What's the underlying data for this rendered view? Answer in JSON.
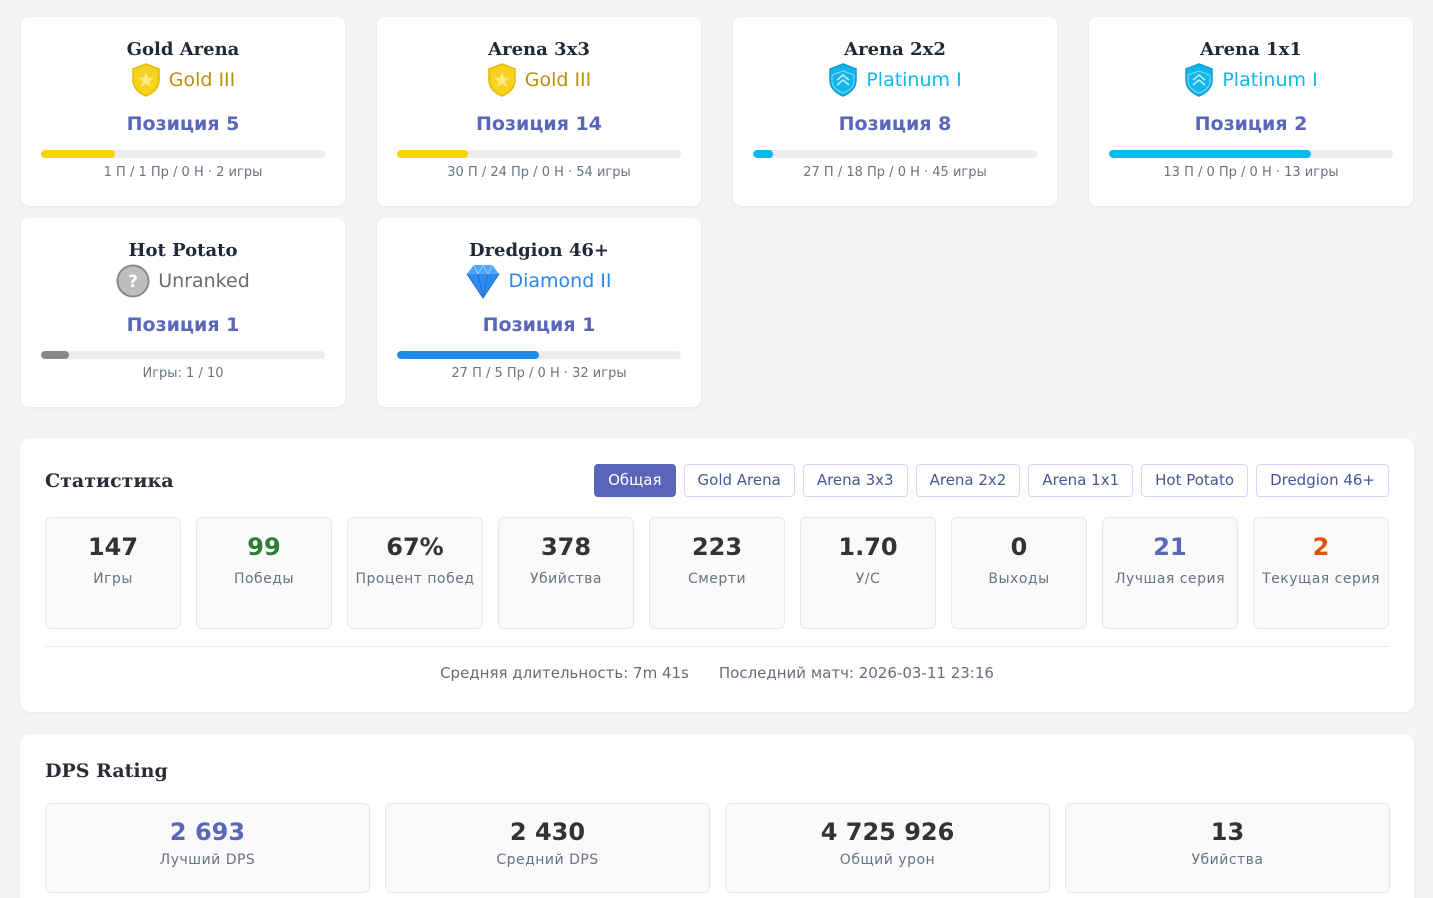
{
  "arena_cards": [
    {
      "title": "Gold Arena",
      "rank_label": "Gold III",
      "rank_icon": "gold-shield-icon",
      "rank_color": "#b8920a",
      "position": "Позиция 5",
      "progress": 0.26,
      "bar_color": "#f5d400",
      "record": "1 П / 1 Пр / 0 Н · 2 игры"
    },
    {
      "title": "Arena 3x3",
      "rank_label": "Gold III",
      "rank_icon": "gold-shield-icon",
      "rank_color": "#b8920a",
      "position": "Позиция 14",
      "progress": 0.25,
      "bar_color": "#f5d400",
      "record": "30 П / 24 Пр / 0 Н · 54 игры"
    },
    {
      "title": "Arena 2x2",
      "rank_label": "Platinum I",
      "rank_icon": "platinum-shield-icon",
      "rank_color": "#10b8e8",
      "position": "Позиция 8",
      "progress": 0.07,
      "bar_color": "#0ab9ee",
      "record": "27 П / 18 Пр / 0 Н · 45 игры"
    },
    {
      "title": "Arena 1x1",
      "rank_label": "Platinum I",
      "rank_icon": "platinum-shield-icon",
      "rank_color": "#10b8e8",
      "position": "Позиция 2",
      "progress": 0.71,
      "bar_color": "#0ab9ee",
      "record": "13 П / 0 Пр / 0 Н · 13 игры"
    },
    {
      "title": "Hot Potato",
      "rank_label": "Unranked",
      "rank_icon": "question-circle-icon",
      "rank_color": "#6b6b6b",
      "position": "Позиция 1",
      "progress": 0.1,
      "bar_color": "#888888",
      "record": "Игры: 1 / 10"
    },
    {
      "title": "Dredgion 46+",
      "rank_label": "Diamond II",
      "rank_icon": "diamond-icon",
      "rank_color": "#2a87e8",
      "position": "Позиция 1",
      "progress": 0.5,
      "bar_color": "#1e8cf0",
      "record": "27 П / 5 Пр / 0 Н · 32 игры"
    }
  ],
  "stats": {
    "title": "Статистика",
    "tabs": [
      "Общая",
      "Gold Arena",
      "Arena 3x3",
      "Arena 2x2",
      "Arena 1x1",
      "Hot Potato",
      "Dredgion 46+"
    ],
    "active_tab": "Общая",
    "items": [
      {
        "value": "147",
        "label": "Игры",
        "color": "#333333"
      },
      {
        "value": "99",
        "label": "Победы",
        "color": "#2e7d32"
      },
      {
        "value": "67%",
        "label": "Процент побед",
        "color": "#333333"
      },
      {
        "value": "378",
        "label": "Убийства",
        "color": "#333333"
      },
      {
        "value": "223",
        "label": "Смерти",
        "color": "#333333"
      },
      {
        "value": "1.70",
        "label": "У/С",
        "color": "#333333"
      },
      {
        "value": "0",
        "label": "Выходы",
        "color": "#333333"
      },
      {
        "value": "21",
        "label": "Лучшая серия",
        "color": "#5a67b8"
      },
      {
        "value": "2",
        "label": "Текущая серия",
        "color": "#e65100"
      }
    ],
    "avg_duration": "Средняя длительность: 7m 41s",
    "last_match": "Последний матч: 2026-03-11 23:16"
  },
  "dps": {
    "title": "DPS Rating",
    "items": [
      {
        "value": "2 693",
        "label": "Лучший DPS",
        "color": "#5a67b8"
      },
      {
        "value": "2 430",
        "label": "Средний DPS",
        "color": "#333333"
      },
      {
        "value": "4 725 926",
        "label": "Общий урон",
        "color": "#333333"
      },
      {
        "value": "13",
        "label": "Убийства",
        "color": "#333333"
      }
    ]
  }
}
